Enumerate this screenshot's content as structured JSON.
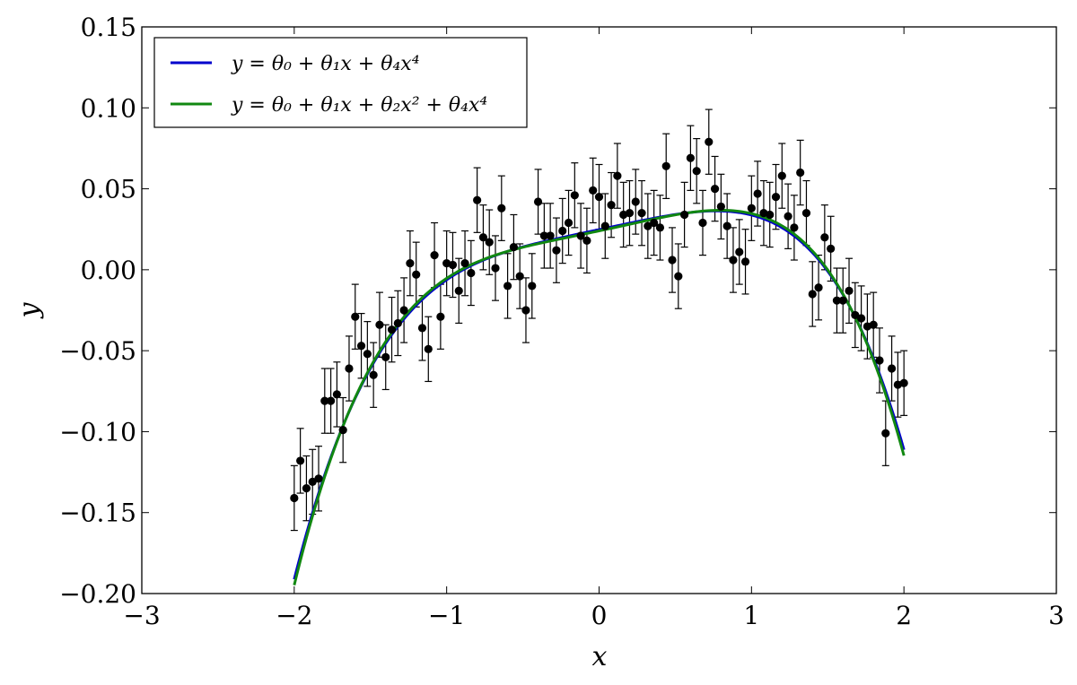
{
  "chart_data": {
    "type": "scatter",
    "xlabel": "x",
    "ylabel": "y",
    "xlim": [
      -3,
      3
    ],
    "ylim": [
      -0.2,
      0.15
    ],
    "x_ticks": [
      -3,
      -2,
      -1,
      0,
      1,
      2,
      3
    ],
    "x_tick_labels": [
      "−3",
      "−2",
      "−1",
      "0",
      "1",
      "2",
      "3"
    ],
    "y_ticks": [
      -0.2,
      -0.15,
      -0.1,
      -0.05,
      0.0,
      0.05,
      0.1,
      0.15
    ],
    "y_tick_labels": [
      "−0.20",
      "−0.15",
      "−0.10",
      "−0.05",
      "0.00",
      "0.05",
      "0.10",
      "0.15"
    ],
    "grid": false,
    "legend": {
      "placement": "top-left",
      "entries": [
        {
          "label": "y = θ₀ + θ₁x + θ₄x⁴",
          "color": "#0000cc"
        },
        {
          "label": "y = θ₀ + θ₁x + θ₂x² + θ₄x⁴",
          "color": "#118811"
        }
      ]
    },
    "error_bar": 0.02,
    "points": {
      "x": [
        -2.0,
        -1.96,
        -1.92,
        -1.88,
        -1.84,
        -1.8,
        -1.76,
        -1.72,
        -1.68,
        -1.64,
        -1.6,
        -1.56,
        -1.52,
        -1.48,
        -1.44,
        -1.4,
        -1.36,
        -1.32,
        -1.28,
        -1.24,
        -1.2,
        -1.16,
        -1.12,
        -1.08,
        -1.04,
        -1.0,
        -0.96,
        -0.92,
        -0.88,
        -0.84,
        -0.8,
        -0.76,
        -0.72,
        -0.68,
        -0.64,
        -0.6,
        -0.56,
        -0.52,
        -0.48,
        -0.44,
        -0.4,
        -0.36,
        -0.32,
        -0.28,
        -0.24,
        -0.2,
        -0.16,
        -0.12,
        -0.08,
        -0.04,
        0.0,
        0.04,
        0.08,
        0.12,
        0.16,
        0.2,
        0.24,
        0.28,
        0.32,
        0.36,
        0.4,
        0.44,
        0.48,
        0.52,
        0.56,
        0.6,
        0.64,
        0.68,
        0.72,
        0.76,
        0.8,
        0.84,
        0.88,
        0.92,
        0.96,
        1.0,
        1.04,
        1.08,
        1.12,
        1.16,
        1.2,
        1.24,
        1.28,
        1.32,
        1.36,
        1.4,
        1.44,
        1.48,
        1.52,
        1.56,
        1.6,
        1.64,
        1.68,
        1.72,
        1.76,
        1.8,
        1.84,
        1.88,
        1.92,
        1.96,
        2.0
      ],
      "y": [
        -0.141,
        -0.118,
        -0.135,
        -0.131,
        -0.129,
        -0.081,
        -0.081,
        -0.077,
        -0.099,
        -0.061,
        -0.029,
        -0.047,
        -0.052,
        -0.065,
        -0.034,
        -0.054,
        -0.037,
        -0.033,
        -0.025,
        0.004,
        -0.003,
        -0.036,
        -0.049,
        0.009,
        -0.029,
        0.004,
        0.003,
        -0.013,
        0.004,
        -0.002,
        0.043,
        0.02,
        0.017,
        0.001,
        0.038,
        -0.01,
        0.014,
        -0.004,
        -0.025,
        -0.01,
        0.042,
        0.021,
        0.021,
        0.012,
        0.024,
        0.029,
        0.046,
        0.021,
        0.018,
        0.049,
        0.045,
        0.027,
        0.04,
        0.058,
        0.034,
        0.035,
        0.042,
        0.035,
        0.027,
        0.029,
        0.026,
        0.064,
        0.006,
        -0.004,
        0.034,
        0.069,
        0.061,
        0.029,
        0.079,
        0.05,
        0.039,
        0.027,
        0.006,
        0.011,
        0.005,
        0.038,
        0.047,
        0.035,
        0.034,
        0.045,
        0.058,
        0.033,
        0.026,
        0.06,
        0.035,
        -0.015,
        -0.011,
        0.02,
        0.013,
        -0.019,
        -0.019,
        -0.013,
        -0.028,
        -0.03,
        -0.035,
        -0.034,
        -0.056,
        -0.101,
        -0.061,
        -0.071,
        -0.07
      ]
    },
    "series": [
      {
        "coefficients": {
          "theta0": 0.0248,
          "theta1": 0.02,
          "theta2": 0.0,
          "theta4": -0.011
        },
        "color": "#0000cc"
      },
      {
        "coefficients": {
          "theta0": 0.024,
          "theta1": 0.02,
          "theta2": 0.0025,
          "theta4": -0.0118
        },
        "color": "#118811"
      }
    ],
    "curve_x_range": [
      -2,
      2
    ]
  }
}
